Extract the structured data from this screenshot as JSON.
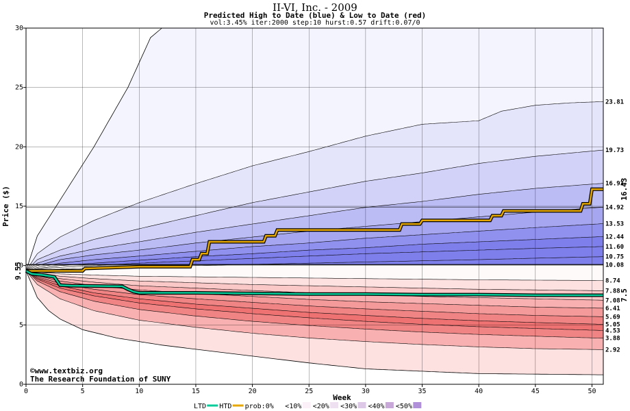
{
  "header": {
    "title": "II-VI, Inc. - 2009",
    "subtitle": "Predicted High to Date (blue) &  Low to Date (red)",
    "params": "vol:3.45% iter:2000 step:10 hurst:0.57 drift:0.07/0"
  },
  "credits": {
    "line1": "©www.textbiz.org",
    "line2": "The Research Foundation of SUNY"
  },
  "legend": {
    "items": [
      "LTD",
      "HTD",
      "prob:0%",
      "<10%",
      "<20%",
      "<30%",
      "<40%",
      "<50%"
    ]
  },
  "colors": {
    "plot_bg": "#ffffff",
    "htd_line": "#e6a800",
    "ltd_line": "#00cc99",
    "grid": "#000000",
    "blue_bands": [
      "#f4f4ff",
      "#e4e4fb",
      "#d2d2f8",
      "#bcbcf4",
      "#a6a6f0",
      "#9090ee",
      "#7f7fec"
    ],
    "red_bands": [
      "#fdf0f0",
      "#fde0e0",
      "#fbc8c8",
      "#f8b0b0",
      "#f49a9a",
      "#f08484",
      "#ee7272"
    ],
    "start_label": "#006600",
    "end_high_label": "#b8860b",
    "end_low_label": "#009966"
  },
  "chart_data": {
    "type": "area",
    "title": "II-VI, Inc. - 2009",
    "subtitle": "Predicted High to Date (blue) &  Low to Date (red)",
    "xlabel": "Week",
    "ylabel": "Price ($)",
    "xlim": [
      0,
      51
    ],
    "ylim": [
      0,
      30
    ],
    "xticks": [
      0,
      5,
      10,
      15,
      20,
      25,
      30,
      35,
      40,
      45,
      50
    ],
    "yticks": [
      0,
      5,
      10,
      15,
      20,
      25,
      30
    ],
    "grid": true,
    "start_price": "9.55",
    "start_value": 9.55,
    "end_high_value": "16.43",
    "end_low_value": "7.5",
    "right_labels": [
      "23.81",
      "19.73",
      "16.93",
      "14.92",
      "13.53",
      "12.44",
      "11.60",
      "10.75",
      "10.08",
      "8.74",
      "7.88",
      "7.08",
      "6.41",
      "5.69",
      "5.05",
      "4.53",
      "3.88",
      "2.92"
    ],
    "upper_curves": [
      {
        "end": 23.81,
        "x": [
          0,
          1,
          3,
          6,
          10,
          15,
          20,
          25,
          30,
          35,
          40,
          42,
          45,
          48,
          51
        ],
        "y": [
          9.55,
          11.0,
          12.4,
          13.8,
          15.3,
          16.9,
          18.4,
          19.6,
          20.9,
          21.9,
          22.2,
          23.0,
          23.5,
          23.7,
          23.81
        ]
      },
      {
        "end": 19.73,
        "x": [
          0,
          1,
          3,
          6,
          10,
          15,
          20,
          25,
          30,
          35,
          40,
          45,
          51
        ],
        "y": [
          9.55,
          10.5,
          11.3,
          12.2,
          13.1,
          14.2,
          15.3,
          16.2,
          17.1,
          17.8,
          18.6,
          19.2,
          19.73
        ]
      },
      {
        "end": 16.93,
        "x": [
          0,
          1,
          3,
          6,
          10,
          15,
          20,
          25,
          30,
          35,
          40,
          45,
          51
        ],
        "y": [
          9.55,
          10.2,
          10.8,
          11.4,
          12.0,
          12.8,
          13.5,
          14.2,
          14.9,
          15.4,
          16.0,
          16.5,
          16.93
        ]
      },
      {
        "end": 14.92,
        "x": [
          0,
          1,
          3,
          6,
          10,
          15,
          20,
          25,
          30,
          35,
          40,
          45,
          51
        ],
        "y": [
          9.55,
          10.0,
          10.5,
          10.9,
          11.3,
          11.9,
          12.4,
          12.9,
          13.3,
          13.7,
          14.1,
          14.5,
          14.92
        ]
      },
      {
        "end": 13.53,
        "x": [
          0,
          1,
          3,
          6,
          10,
          15,
          20,
          25,
          30,
          35,
          40,
          45,
          51
        ],
        "y": [
          9.55,
          9.85,
          10.2,
          10.5,
          10.8,
          11.2,
          11.6,
          11.9,
          12.3,
          12.6,
          12.9,
          13.2,
          13.53
        ]
      },
      {
        "end": 12.44,
        "x": [
          0,
          1,
          3,
          6,
          10,
          15,
          20,
          25,
          30,
          35,
          40,
          45,
          51
        ],
        "y": [
          9.55,
          9.75,
          10.0,
          10.2,
          10.45,
          10.75,
          11.0,
          11.3,
          11.5,
          11.8,
          12.0,
          12.2,
          12.44
        ]
      },
      {
        "end": 11.6,
        "x": [
          0,
          1,
          3,
          6,
          10,
          15,
          20,
          25,
          30,
          35,
          40,
          45,
          51
        ],
        "y": [
          9.55,
          9.7,
          9.85,
          10.0,
          10.2,
          10.4,
          10.6,
          10.8,
          11.0,
          11.15,
          11.3,
          11.45,
          11.6
        ]
      },
      {
        "end": 10.75,
        "x": [
          0,
          1,
          3,
          6,
          10,
          15,
          20,
          25,
          30,
          35,
          40,
          45,
          51
        ],
        "y": [
          9.55,
          9.62,
          9.7,
          9.8,
          9.9,
          10.0,
          10.1,
          10.2,
          10.3,
          10.4,
          10.5,
          10.62,
          10.75
        ]
      }
    ],
    "baseline_value": 10.08,
    "lower_curves": [
      {
        "end": 8.74,
        "x": [
          0,
          1,
          3,
          6,
          10,
          15,
          20,
          25,
          30,
          35,
          40,
          45,
          51
        ],
        "y": [
          9.55,
          9.45,
          9.3,
          9.2,
          9.1,
          9.05,
          9.0,
          8.95,
          8.9,
          8.85,
          8.8,
          8.77,
          8.74
        ]
      },
      {
        "end": 7.88,
        "x": [
          0,
          1,
          3,
          6,
          10,
          15,
          20,
          25,
          30,
          35,
          40,
          45,
          51
        ],
        "y": [
          9.55,
          9.35,
          9.1,
          8.9,
          8.7,
          8.55,
          8.4,
          8.3,
          8.2,
          8.1,
          8.0,
          7.95,
          7.88
        ]
      },
      {
        "end": 7.08,
        "x": [
          0,
          1,
          3,
          6,
          10,
          15,
          20,
          25,
          30,
          35,
          40,
          45,
          51
        ],
        "y": [
          9.55,
          9.25,
          8.9,
          8.6,
          8.3,
          8.1,
          7.9,
          7.7,
          7.55,
          7.4,
          7.3,
          7.2,
          7.08
        ]
      },
      {
        "end": 6.41,
        "x": [
          0,
          1,
          3,
          6,
          10,
          15,
          20,
          25,
          30,
          35,
          40,
          45,
          51
        ],
        "y": [
          9.55,
          9.15,
          8.7,
          8.3,
          7.95,
          7.65,
          7.4,
          7.15,
          6.95,
          6.8,
          6.65,
          6.5,
          6.41
        ]
      },
      {
        "end": 5.69,
        "x": [
          0,
          1,
          3,
          6,
          10,
          15,
          20,
          25,
          30,
          35,
          40,
          45,
          51
        ],
        "y": [
          9.55,
          9.05,
          8.5,
          8.0,
          7.55,
          7.2,
          6.9,
          6.6,
          6.35,
          6.15,
          5.95,
          5.8,
          5.69
        ]
      },
      {
        "end": 5.05,
        "x": [
          0,
          1,
          3,
          6,
          10,
          15,
          20,
          25,
          30,
          35,
          40,
          45,
          51
        ],
        "y": [
          9.55,
          8.95,
          8.3,
          7.7,
          7.2,
          6.75,
          6.4,
          6.05,
          5.8,
          5.55,
          5.35,
          5.2,
          5.05
        ]
      },
      {
        "end": 4.53,
        "x": [
          0,
          1,
          3,
          6,
          10,
          15,
          20,
          25,
          30,
          35,
          40,
          45,
          51
        ],
        "y": [
          9.55,
          8.85,
          8.1,
          7.45,
          6.85,
          6.35,
          5.95,
          5.6,
          5.3,
          5.05,
          4.85,
          4.7,
          4.53
        ]
      },
      {
        "end": 3.88,
        "x": [
          0,
          1,
          3,
          6,
          10,
          15,
          20,
          25,
          30,
          35,
          40,
          45,
          51
        ],
        "y": [
          9.55,
          8.7,
          7.8,
          7.0,
          6.3,
          5.75,
          5.3,
          4.95,
          4.65,
          4.4,
          4.2,
          4.05,
          3.88
        ]
      },
      {
        "end": 2.92,
        "x": [
          0,
          1,
          3,
          6,
          10,
          15,
          20,
          25,
          30,
          35,
          40,
          45,
          51
        ],
        "y": [
          9.55,
          8.4,
          7.2,
          6.2,
          5.4,
          4.8,
          4.3,
          3.9,
          3.6,
          3.35,
          3.15,
          3.0,
          2.92
        ]
      }
    ],
    "outer_upper": {
      "x": [
        0,
        1,
        3,
        6,
        9,
        11,
        12,
        15,
        20,
        30,
        51
      ],
      "y": [
        9.55,
        12.5,
        15.5,
        20.0,
        25.0,
        29.2,
        30,
        30,
        30,
        30,
        30
      ]
    },
    "outer_lower": {
      "x": [
        0,
        1,
        2,
        3,
        5,
        8,
        12,
        18,
        25,
        30,
        40,
        51
      ],
      "y": [
        9.55,
        7.3,
        6.2,
        5.5,
        4.6,
        3.9,
        3.3,
        2.6,
        1.8,
        1.3,
        0.9,
        0.8
      ]
    },
    "htd_series": {
      "name": "HTD",
      "x": [
        0,
        5,
        5.2,
        10,
        14.5,
        14.7,
        15.3,
        15.5,
        16,
        16.2,
        21,
        21.2,
        22,
        22.2,
        33,
        33.2,
        34.8,
        35,
        41,
        41.2,
        42,
        42.2,
        49,
        49.2,
        49.8,
        50,
        51
      ],
      "y": [
        9.55,
        9.55,
        9.75,
        9.9,
        9.9,
        10.5,
        10.5,
        11.0,
        11.0,
        12.0,
        12.0,
        12.5,
        12.5,
        13.0,
        13.0,
        13.5,
        13.5,
        13.8,
        13.8,
        14.2,
        14.2,
        14.6,
        14.6,
        15.2,
        15.2,
        16.43,
        16.43
      ]
    },
    "ltd_series": {
      "name": "LTD",
      "x": [
        0,
        0.5,
        1.5,
        2.5,
        3,
        4,
        8.5,
        9,
        9.5,
        10,
        15,
        20,
        25,
        30,
        35,
        40,
        45,
        51
      ],
      "y": [
        9.55,
        9.3,
        9.2,
        9.05,
        8.35,
        8.3,
        8.25,
        8.0,
        7.8,
        7.7,
        7.7,
        7.65,
        7.6,
        7.6,
        7.55,
        7.55,
        7.5,
        7.5
      ]
    }
  }
}
